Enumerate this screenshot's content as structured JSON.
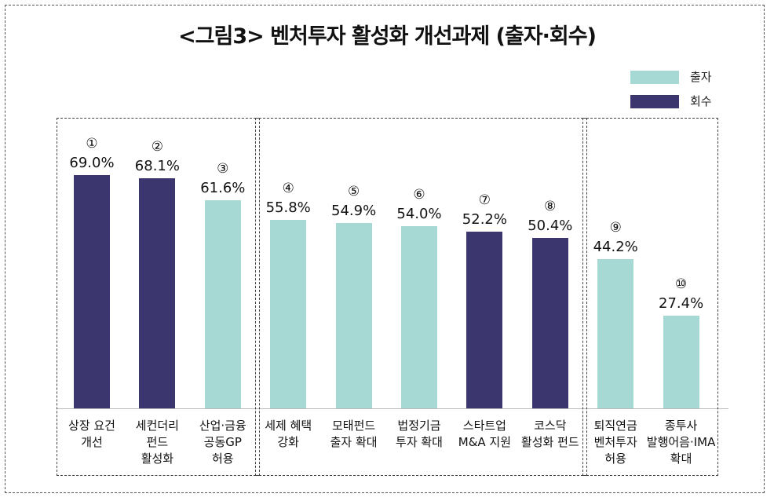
{
  "chart_data": {
    "type": "bar",
    "title": "<그림3> 벤처투자 활성화 개선과제 (출자·회수)",
    "legend": [
      {
        "name": "출자",
        "color": "#a6d8d4"
      },
      {
        "name": "회수",
        "color": "#3b366e"
      }
    ],
    "legend_placement": "top-right",
    "ylim": [
      0,
      75
    ],
    "grid": false,
    "categories": [
      {
        "num": "①",
        "label": [
          "상장 요건",
          "개선"
        ],
        "value": 69.0,
        "display": "69.0%",
        "series": "회수"
      },
      {
        "num": "②",
        "label": [
          "세컨더리",
          "펀드",
          "활성화"
        ],
        "value": 68.1,
        "display": "68.1%",
        "series": "회수"
      },
      {
        "num": "③",
        "label": [
          "산업·금융",
          "공동GP",
          "허용"
        ],
        "value": 61.6,
        "display": "61.6%",
        "series": "출자"
      },
      {
        "num": "④",
        "label": [
          "세제 혜택",
          "강화"
        ],
        "value": 55.8,
        "display": "55.8%",
        "series": "출자"
      },
      {
        "num": "⑤",
        "label": [
          "모태펀드",
          "출자 확대"
        ],
        "value": 54.9,
        "display": "54.9%",
        "series": "출자"
      },
      {
        "num": "⑥",
        "label": [
          "법정기금",
          "투자 확대"
        ],
        "value": 54.0,
        "display": "54.0%",
        "series": "출자"
      },
      {
        "num": "⑦",
        "label": [
          "스타트업",
          "M&A 지원"
        ],
        "value": 52.2,
        "display": "52.2%",
        "series": "회수"
      },
      {
        "num": "⑧",
        "label": [
          "코스닥",
          "활성화 펀드"
        ],
        "value": 50.4,
        "display": "50.4%",
        "series": "회수"
      },
      {
        "num": "⑨",
        "label": [
          "퇴직연금",
          "벤처투자",
          "허용"
        ],
        "value": 44.2,
        "display": "44.2%",
        "series": "출자"
      },
      {
        "num": "⑩",
        "label": [
          "종투사",
          "발행어음·IMA",
          "확대"
        ],
        "value": 27.4,
        "display": "27.4%",
        "series": "출자"
      }
    ],
    "groups": [
      [
        0,
        2
      ],
      [
        3,
        7
      ],
      [
        8,
        9
      ]
    ]
  }
}
